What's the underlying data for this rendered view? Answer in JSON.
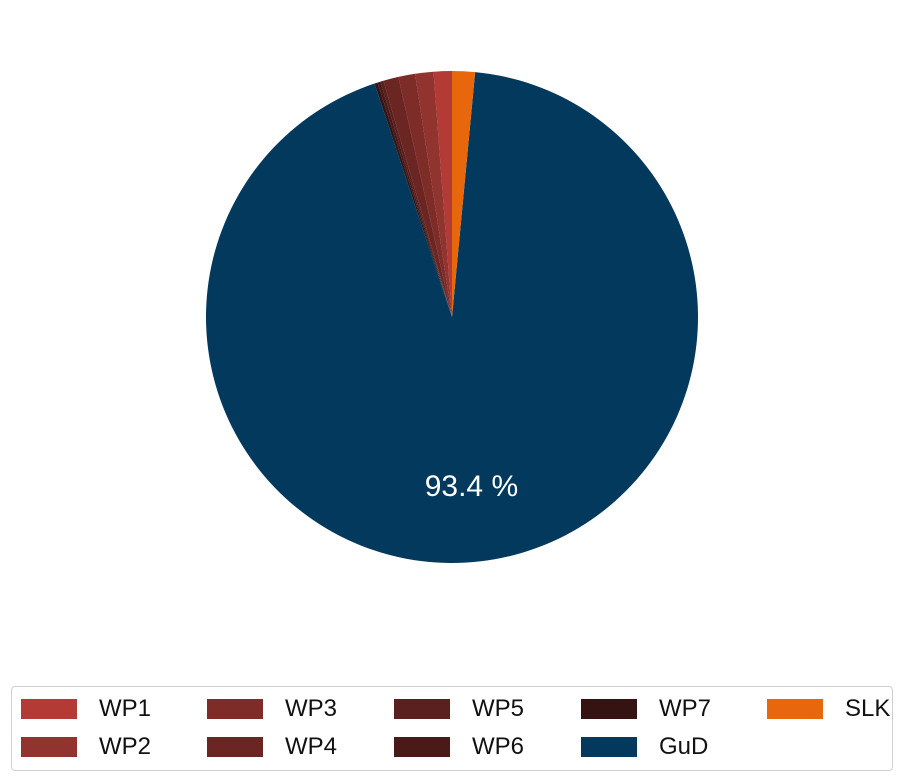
{
  "chart_data": {
    "type": "pie",
    "start": "top",
    "direction": "counterclockwise",
    "slices": [
      {
        "label": "WP1",
        "value": 1.2,
        "color": "#b33a35",
        "text": ""
      },
      {
        "label": "WP2",
        "value": 1.2,
        "color": "#913430",
        "text": ""
      },
      {
        "label": "WP3",
        "value": 1.1,
        "color": "#7e2c28",
        "text": ""
      },
      {
        "label": "WP4",
        "value": 1.0,
        "color": "#6b2623",
        "text": ""
      },
      {
        "label": "WP5",
        "value": 0.2,
        "color": "#5a201e",
        "text": ""
      },
      {
        "label": "WP6",
        "value": 0.2,
        "color": "#4a1a19",
        "text": ""
      },
      {
        "label": "WP7",
        "value": 0.2,
        "color": "#351312",
        "text": ""
      },
      {
        "label": "GuD",
        "value": 93.4,
        "color": "#02395c",
        "text": "93.4 %"
      },
      {
        "label": "SLK",
        "value": 1.5,
        "color": "#e8670c",
        "text": ""
      }
    ],
    "title": "",
    "legend": "bottom"
  },
  "legend_order": [
    "WP1",
    "WP3",
    "WP5",
    "WP7",
    "SLK",
    "WP2",
    "WP4",
    "WP6",
    "GuD"
  ]
}
